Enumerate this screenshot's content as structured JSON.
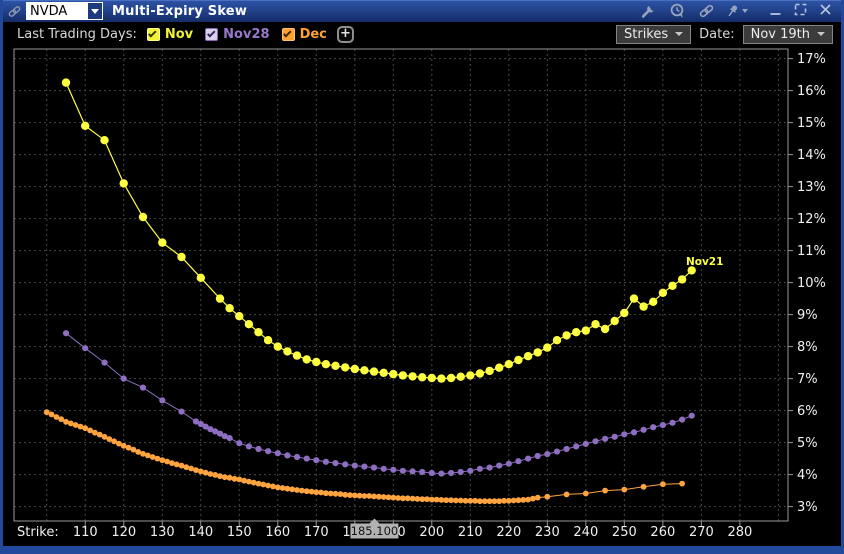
{
  "titlebar": {
    "symbol": "NVDA",
    "title": "Multi-Expiry Skew",
    "icons": [
      "link-group",
      "wrench",
      "alert-bubble",
      "link",
      "pin"
    ],
    "window_controls": [
      "minimize",
      "maximize",
      "close"
    ]
  },
  "toolbar": {
    "label": "Last Trading Days:",
    "toggles": [
      {
        "label": "Nov",
        "checked": true,
        "label_color": "#f2f238",
        "box_bg": "#f2f238",
        "box_border": "#ffff8c",
        "check_color": "#33330a"
      },
      {
        "label": "Nov28",
        "checked": true,
        "label_color": "#9a79cd",
        "box_bg": "#d9d2e8",
        "box_border": "#8a68b8",
        "check_color": "#35245c"
      },
      {
        "label": "Dec",
        "checked": true,
        "label_color": "#ffa232",
        "box_bg": "#ffa232",
        "box_border": "#ffc376",
        "check_color": "#3d2703"
      }
    ],
    "add_button_label": "+",
    "strikes_button_label": "Strikes",
    "date_label": "Date:",
    "date_value": "Nov 19th"
  },
  "chart_data": {
    "type": "line",
    "xlabel": "Strike:",
    "background": "#000000",
    "grid_color": "#474747",
    "axis_color": "#979797",
    "label_color": "#f0f0f0",
    "x_domain": [
      91.5,
      292.5
    ],
    "y_domain": [
      2.55,
      17.3
    ],
    "x_gridlines": [
      100,
      110,
      120,
      130,
      140,
      150,
      160,
      170,
      180,
      190,
      200,
      210,
      220,
      230,
      240,
      250,
      260,
      270,
      280,
      290
    ],
    "x_ticks": [
      {
        "v": 110,
        "label": "110"
      },
      {
        "v": 120,
        "label": "120"
      },
      {
        "v": 130,
        "label": "130"
      },
      {
        "v": 140,
        "label": "140"
      },
      {
        "v": 150,
        "label": "150"
      },
      {
        "v": 160,
        "label": "160"
      },
      {
        "v": 170,
        "label": "170"
      },
      {
        "v": 180,
        "label": "180"
      },
      {
        "v": 190,
        "label": "190"
      },
      {
        "v": 200,
        "label": "200"
      },
      {
        "v": 210,
        "label": "210"
      },
      {
        "v": 220,
        "label": "220"
      },
      {
        "v": 230,
        "label": "230"
      },
      {
        "v": 240,
        "label": "240"
      },
      {
        "v": 250,
        "label": "250"
      },
      {
        "v": 260,
        "label": "260"
      },
      {
        "v": 270,
        "label": "270"
      },
      {
        "v": 280,
        "label": "280"
      }
    ],
    "y_ticks": [
      {
        "v": 17,
        "label": "17%"
      },
      {
        "v": 16,
        "label": "16%"
      },
      {
        "v": 15,
        "label": "15%"
      },
      {
        "v": 14,
        "label": "14%"
      },
      {
        "v": 13,
        "label": "13%"
      },
      {
        "v": 12,
        "label": "12%"
      },
      {
        "v": 11,
        "label": "11%"
      },
      {
        "v": 10,
        "label": "10%"
      },
      {
        "v": 9,
        "label": "9%"
      },
      {
        "v": 8,
        "label": "8%"
      },
      {
        "v": 7,
        "label": "7%"
      },
      {
        "v": 6,
        "label": "6%"
      },
      {
        "v": 5,
        "label": "5%"
      },
      {
        "v": 4,
        "label": "4%"
      },
      {
        "v": 3,
        "label": "3%"
      }
    ],
    "price_marker": {
      "label": "185.100",
      "strike": 185.1,
      "box_color": "#b2b2b2",
      "text_color": "#141414"
    },
    "annotation": {
      "label": "Nov21",
      "strike": 266.0,
      "value": 10.55,
      "color": "#ffff42"
    },
    "series": [
      {
        "name": "Nov",
        "color": "#ffff42",
        "point_radius": 4.2,
        "line_width": 1.2,
        "points": [
          [
            105,
            16.25
          ],
          [
            110,
            14.9
          ],
          [
            115,
            14.45
          ],
          [
            120,
            13.1
          ],
          [
            125,
            12.05
          ],
          [
            130,
            11.25
          ],
          [
            135,
            10.8
          ],
          [
            140,
            10.15
          ],
          [
            145,
            9.5
          ],
          [
            147.5,
            9.2
          ],
          [
            150,
            8.95
          ],
          [
            152.5,
            8.7
          ],
          [
            155,
            8.45
          ],
          [
            157.5,
            8.2
          ],
          [
            160,
            8.0
          ],
          [
            162.5,
            7.85
          ],
          [
            165,
            7.72
          ],
          [
            167.5,
            7.6
          ],
          [
            170,
            7.52
          ],
          [
            172.5,
            7.45
          ],
          [
            175,
            7.4
          ],
          [
            177.5,
            7.35
          ],
          [
            180,
            7.3
          ],
          [
            182.5,
            7.26
          ],
          [
            185,
            7.22
          ],
          [
            187.5,
            7.18
          ],
          [
            190,
            7.14
          ],
          [
            192.5,
            7.1
          ],
          [
            195,
            7.07
          ],
          [
            197.5,
            7.04
          ],
          [
            200,
            7.02
          ],
          [
            202.5,
            7.0
          ],
          [
            205,
            7.02
          ],
          [
            207.5,
            7.06
          ],
          [
            210,
            7.1
          ],
          [
            212.5,
            7.16
          ],
          [
            215,
            7.24
          ],
          [
            217.5,
            7.34
          ],
          [
            220,
            7.45
          ],
          [
            222.5,
            7.58
          ],
          [
            225,
            7.7
          ],
          [
            227.5,
            7.82
          ],
          [
            230,
            7.97
          ],
          [
            232.5,
            8.2
          ],
          [
            235,
            8.35
          ],
          [
            237.5,
            8.45
          ],
          [
            240,
            8.5
          ],
          [
            242.5,
            8.7
          ],
          [
            245,
            8.55
          ],
          [
            247.5,
            8.8
          ],
          [
            250,
            9.05
          ],
          [
            252.5,
            9.5
          ],
          [
            255,
            9.25
          ],
          [
            257.5,
            9.4
          ],
          [
            260,
            9.68
          ],
          [
            262.5,
            9.9
          ],
          [
            265,
            10.1
          ],
          [
            267.5,
            10.38
          ]
        ]
      },
      {
        "name": "Nov28",
        "color": "#8d6ec0",
        "point_radius": 3.1,
        "line_width": 1,
        "points": [
          [
            105,
            8.42
          ],
          [
            110,
            7.95
          ],
          [
            115,
            7.5
          ],
          [
            120,
            7.0
          ],
          [
            125,
            6.72
          ],
          [
            130,
            6.32
          ],
          [
            135,
            5.97
          ],
          [
            138.75,
            5.66
          ],
          [
            140,
            5.58
          ],
          [
            141.25,
            5.5
          ],
          [
            142.5,
            5.42
          ],
          [
            143.75,
            5.35
          ],
          [
            145,
            5.28
          ],
          [
            146.25,
            5.2
          ],
          [
            147.5,
            5.14
          ],
          [
            150,
            4.98
          ],
          [
            152.5,
            4.88
          ],
          [
            155,
            4.8
          ],
          [
            157.5,
            4.73
          ],
          [
            160,
            4.67
          ],
          [
            162.5,
            4.6
          ],
          [
            165,
            4.55
          ],
          [
            167.5,
            4.5
          ],
          [
            170,
            4.45
          ],
          [
            172.5,
            4.4
          ],
          [
            175,
            4.36
          ],
          [
            177.5,
            4.32
          ],
          [
            180,
            4.28
          ],
          [
            182.5,
            4.25
          ],
          [
            185,
            4.22
          ],
          [
            187.5,
            4.18
          ],
          [
            190,
            4.15
          ],
          [
            192.5,
            4.12
          ],
          [
            195,
            4.1
          ],
          [
            197.5,
            4.08
          ],
          [
            200,
            4.05
          ],
          [
            202.5,
            4.03
          ],
          [
            205,
            4.05
          ],
          [
            207.5,
            4.08
          ],
          [
            210,
            4.12
          ],
          [
            212.5,
            4.18
          ],
          [
            215,
            4.22
          ],
          [
            217.5,
            4.28
          ],
          [
            220,
            4.34
          ],
          [
            222.5,
            4.42
          ],
          [
            225,
            4.5
          ],
          [
            227.5,
            4.58
          ],
          [
            230,
            4.64
          ],
          [
            232.5,
            4.72
          ],
          [
            235,
            4.8
          ],
          [
            237.5,
            4.88
          ],
          [
            240,
            4.96
          ],
          [
            242.5,
            5.04
          ],
          [
            245,
            5.12
          ],
          [
            247.5,
            5.18
          ],
          [
            250,
            5.26
          ],
          [
            252.5,
            5.32
          ],
          [
            255,
            5.4
          ],
          [
            257.5,
            5.48
          ],
          [
            260,
            5.55
          ],
          [
            262.5,
            5.62
          ],
          [
            265,
            5.72
          ],
          [
            267.5,
            5.84
          ]
        ]
      },
      {
        "name": "Dec",
        "color": "#ffa43f",
        "point_radius": 2.9,
        "line_width": 1,
        "points": [
          [
            100,
            5.95
          ],
          [
            101.25,
            5.88
          ],
          [
            102.5,
            5.8
          ],
          [
            103.75,
            5.73
          ],
          [
            105,
            5.65
          ],
          [
            106.25,
            5.6
          ],
          [
            107.5,
            5.55
          ],
          [
            108.75,
            5.5
          ],
          [
            110,
            5.45
          ],
          [
            111.25,
            5.38
          ],
          [
            112.5,
            5.31
          ],
          [
            113.75,
            5.25
          ],
          [
            115,
            5.18
          ],
          [
            116.25,
            5.11
          ],
          [
            117.5,
            5.04
          ],
          [
            118.75,
            4.97
          ],
          [
            120,
            4.9
          ],
          [
            121.25,
            4.84
          ],
          [
            122.5,
            4.78
          ],
          [
            123.75,
            4.71
          ],
          [
            125,
            4.65
          ],
          [
            126.25,
            4.6
          ],
          [
            127.5,
            4.55
          ],
          [
            128.75,
            4.5
          ],
          [
            130,
            4.45
          ],
          [
            131.25,
            4.41
          ],
          [
            132.5,
            4.36
          ],
          [
            133.75,
            4.32
          ],
          [
            135,
            4.28
          ],
          [
            136.25,
            4.23
          ],
          [
            137.5,
            4.19
          ],
          [
            138.75,
            4.14
          ],
          [
            140,
            4.1
          ],
          [
            141.25,
            4.06
          ],
          [
            142.5,
            4.02
          ],
          [
            143.75,
            3.99
          ],
          [
            145,
            3.95
          ],
          [
            146.25,
            3.92
          ],
          [
            147.5,
            3.9
          ],
          [
            148.75,
            3.87
          ],
          [
            150,
            3.85
          ],
          [
            151.25,
            3.81
          ],
          [
            152.5,
            3.78
          ],
          [
            153.75,
            3.75
          ],
          [
            155,
            3.72
          ],
          [
            156.25,
            3.69
          ],
          [
            157.5,
            3.66
          ],
          [
            158.75,
            3.63
          ],
          [
            160,
            3.6
          ],
          [
            161.25,
            3.58
          ],
          [
            162.5,
            3.56
          ],
          [
            163.75,
            3.54
          ],
          [
            165,
            3.52
          ],
          [
            166.25,
            3.5
          ],
          [
            167.5,
            3.48
          ],
          [
            168.75,
            3.47
          ],
          [
            170,
            3.45
          ],
          [
            171.25,
            3.44
          ],
          [
            172.5,
            3.42
          ],
          [
            173.75,
            3.41
          ],
          [
            175,
            3.4
          ],
          [
            176.25,
            3.39
          ],
          [
            177.5,
            3.37
          ],
          [
            178.75,
            3.36
          ],
          [
            180,
            3.35
          ],
          [
            181.25,
            3.34
          ],
          [
            182.5,
            3.33
          ],
          [
            183.75,
            3.33
          ],
          [
            185,
            3.32
          ],
          [
            186.25,
            3.31
          ],
          [
            187.5,
            3.3
          ],
          [
            188.75,
            3.29
          ],
          [
            190,
            3.28
          ],
          [
            191.25,
            3.27
          ],
          [
            192.5,
            3.26
          ],
          [
            193.75,
            3.26
          ],
          [
            195,
            3.25
          ],
          [
            196.25,
            3.24
          ],
          [
            197.5,
            3.23
          ],
          [
            198.75,
            3.23
          ],
          [
            200,
            3.22
          ],
          [
            201.25,
            3.22
          ],
          [
            202.5,
            3.21
          ],
          [
            203.75,
            3.2
          ],
          [
            205,
            3.2
          ],
          [
            206.25,
            3.19
          ],
          [
            207.5,
            3.19
          ],
          [
            208.75,
            3.18
          ],
          [
            210,
            3.18
          ],
          [
            211.25,
            3.18
          ],
          [
            212.5,
            3.17
          ],
          [
            213.75,
            3.17
          ],
          [
            215,
            3.17
          ],
          [
            216.25,
            3.17
          ],
          [
            217.5,
            3.17
          ],
          [
            218.75,
            3.18
          ],
          [
            220,
            3.18
          ],
          [
            221.25,
            3.19
          ],
          [
            222.5,
            3.2
          ],
          [
            223.75,
            3.21
          ],
          [
            225,
            3.22
          ],
          [
            226.25,
            3.25
          ],
          [
            227.5,
            3.28
          ],
          [
            230,
            3.31
          ],
          [
            235,
            3.38
          ],
          [
            240,
            3.41
          ],
          [
            245,
            3.5
          ],
          [
            250,
            3.53
          ],
          [
            255,
            3.62
          ],
          [
            260,
            3.7
          ],
          [
            265,
            3.72
          ]
        ]
      }
    ]
  }
}
